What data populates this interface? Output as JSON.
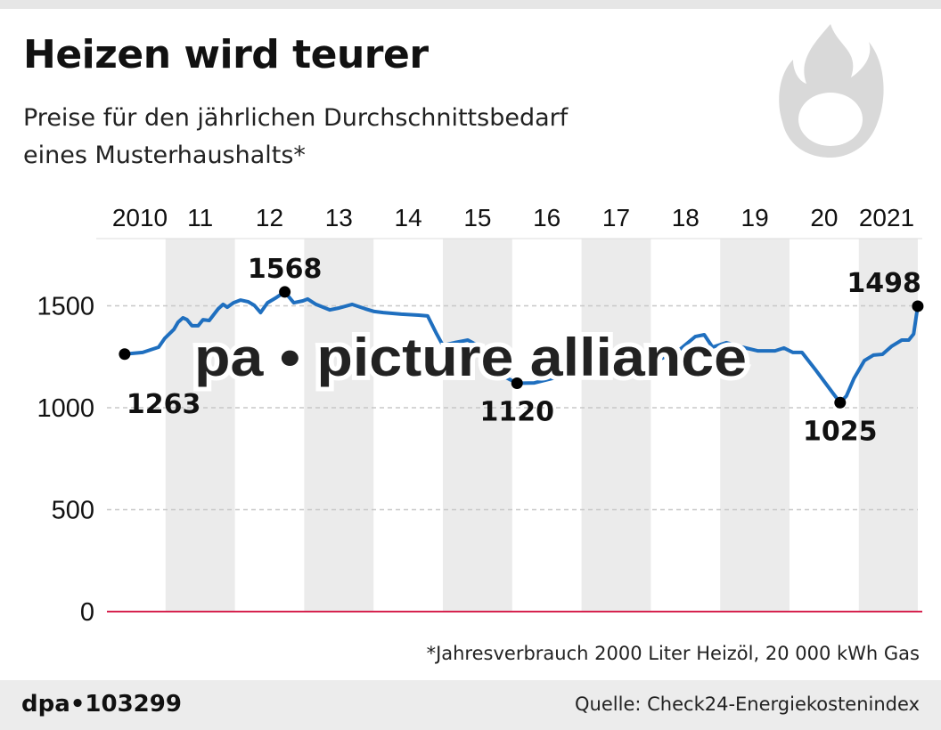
{
  "header": {
    "title": "Heizen wird teurer",
    "subtitle_line1": "Preise für den jährlichen Durchschnittsbedarf",
    "subtitle_line2": "eines Musterhaushalts*",
    "icon": "flame-icon"
  },
  "footnote": "*Jahresverbrauch 2000 Liter Heizöl, 20 000 kWh Gas",
  "footer": {
    "id": "dpa•103299",
    "source": "Quelle: Check24-Energiekostenindex"
  },
  "watermark": "pa • picture alliance",
  "chart_data": {
    "type": "line",
    "title": "Heizen wird teurer",
    "xlabel": "",
    "ylabel": "",
    "x_tick_labels": [
      "2010",
      "11",
      "12",
      "13",
      "14",
      "15",
      "16",
      "17",
      "18",
      "19",
      "20",
      "2021"
    ],
    "y_ticks": [
      0,
      500,
      1000,
      1500
    ],
    "ylim": [
      0,
      1800
    ],
    "xlim": [
      2010,
      2021.9
    ],
    "grid": "horizontal dashed",
    "colors": {
      "line": "#1f6fbf",
      "baseline": "#d6234f",
      "band": "#ebebeb"
    },
    "series": [
      {
        "points": [
          [
            2010.41,
            1263
          ],
          [
            2010.67,
            1271
          ],
          [
            2010.82,
            1288
          ],
          [
            2010.9,
            1297
          ],
          [
            2010.99,
            1341
          ],
          [
            2011.12,
            1384
          ],
          [
            2011.18,
            1419
          ],
          [
            2011.25,
            1441
          ],
          [
            2011.31,
            1432
          ],
          [
            2011.38,
            1402
          ],
          [
            2011.47,
            1402
          ],
          [
            2011.54,
            1432
          ],
          [
            2011.63,
            1428
          ],
          [
            2011.76,
            1485
          ],
          [
            2011.83,
            1507
          ],
          [
            2011.89,
            1493
          ],
          [
            2011.98,
            1515
          ],
          [
            2012.08,
            1528
          ],
          [
            2012.19,
            1520
          ],
          [
            2012.28,
            1502
          ],
          [
            2012.37,
            1467
          ],
          [
            2012.47,
            1515
          ],
          [
            2012.6,
            1541
          ],
          [
            2012.72,
            1568
          ],
          [
            2012.85,
            1515
          ],
          [
            2012.98,
            1524
          ],
          [
            2013.05,
            1533
          ],
          [
            2013.17,
            1507
          ],
          [
            2013.37,
            1480
          ],
          [
            2013.5,
            1489
          ],
          [
            2013.69,
            1507
          ],
          [
            2013.88,
            1485
          ],
          [
            2014.01,
            1472
          ],
          [
            2014.14,
            1467
          ],
          [
            2014.4,
            1459
          ],
          [
            2014.65,
            1454
          ],
          [
            2014.78,
            1450
          ],
          [
            2014.91,
            1362
          ],
          [
            2015.0,
            1306
          ],
          [
            2015.17,
            1319
          ],
          [
            2015.36,
            1332
          ],
          [
            2015.55,
            1297
          ],
          [
            2015.81,
            1166
          ],
          [
            2016.07,
            1120
          ],
          [
            2016.32,
            1122
          ],
          [
            2016.84,
            1166
          ],
          [
            2017.35,
            1210
          ],
          [
            2017.87,
            1201
          ],
          [
            2018.38,
            1275
          ],
          [
            2018.64,
            1349
          ],
          [
            2018.77,
            1358
          ],
          [
            2018.89,
            1297
          ],
          [
            2019.09,
            1319
          ],
          [
            2019.32,
            1297
          ],
          [
            2019.54,
            1279
          ],
          [
            2019.79,
            1279
          ],
          [
            2019.92,
            1293
          ],
          [
            2020.05,
            1271
          ],
          [
            2020.18,
            1271
          ],
          [
            2020.37,
            1188
          ],
          [
            2020.63,
            1070
          ],
          [
            2020.73,
            1025
          ],
          [
            2020.82,
            1057
          ],
          [
            2020.93,
            1144
          ],
          [
            2021.08,
            1231
          ],
          [
            2021.21,
            1258
          ],
          [
            2021.34,
            1262
          ],
          [
            2021.47,
            1301
          ],
          [
            2021.62,
            1332
          ],
          [
            2021.72,
            1332
          ],
          [
            2021.79,
            1362
          ],
          [
            2021.85,
            1498
          ]
        ]
      }
    ],
    "annotations": [
      {
        "x": 2010.41,
        "value": 1263,
        "label": "1263",
        "pos": "below"
      },
      {
        "x": 2012.72,
        "value": 1568,
        "label": "1568",
        "pos": "above"
      },
      {
        "x": 2016.07,
        "value": 1120,
        "label": "1120",
        "pos": "below"
      },
      {
        "x": 2020.73,
        "value": 1025,
        "label": "1025",
        "pos": "below"
      },
      {
        "x": 2021.85,
        "value": 1498,
        "label": "1498",
        "pos": "above"
      }
    ]
  }
}
